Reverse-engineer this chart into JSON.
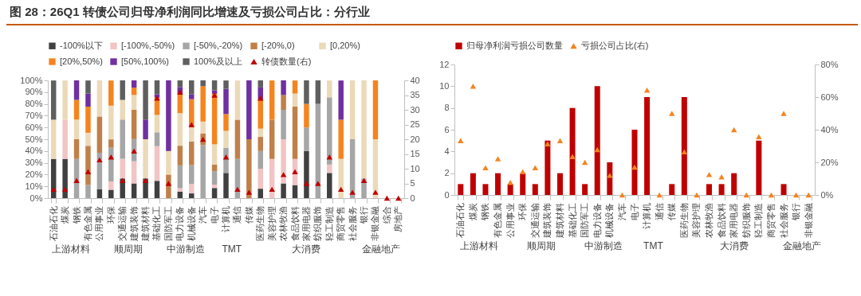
{
  "chart_data": [
    {
      "type": "bar",
      "title": "图 28：26Q1 转债公司归母净利润同比增速及亏损公司占比：分行业",
      "stacked": true,
      "legend": "top",
      "grid": false,
      "categories": [
        "石油石化",
        "煤炭",
        "钢铁",
        "有色金属",
        "公用事业",
        "环保",
        "交通运输",
        "建筑装饰",
        "建筑材料",
        "基础化工",
        "国防军工",
        "电力设备",
        "机械设备",
        "汽车",
        "电子",
        "计算机",
        "通信",
        "传媒",
        "医药生物",
        "美容护理",
        "农林牧渔",
        "食品饮料",
        "家用电器",
        "纺织服饰",
        "轻工制造",
        "商贸零售",
        "社会服务",
        "银行",
        "非银金融",
        "综合",
        "房地产"
      ],
      "ylim": [
        0,
        100
      ],
      "yticks": [
        {
          "value": 0,
          "label": "0%"
        },
        {
          "value": 10,
          "label": "10%"
        },
        {
          "value": 20,
          "label": "20%"
        },
        {
          "value": 30,
          "label": "30%"
        },
        {
          "value": 40,
          "label": "40%"
        },
        {
          "value": 50,
          "label": "50%"
        },
        {
          "value": 60,
          "label": "60%"
        },
        {
          "value": 70,
          "label": "70%"
        },
        {
          "value": 80,
          "label": "80%"
        },
        {
          "value": 90,
          "label": "90%"
        },
        {
          "value": 100,
          "label": "100%"
        }
      ],
      "y2lim": [
        0,
        40
      ],
      "y2ticks": [
        0,
        5,
        10,
        15,
        20,
        25,
        30,
        35,
        40
      ],
      "series": [
        {
          "name": "-100%以下",
          "color": "#404040",
          "values": [
            33.3,
            33.3,
            null,
            null,
            7.7,
            7.1,
            16.7,
            12.5,
            16.7,
            14.7,
            null,
            5.6,
            4,
            null,
            8.6,
            21.4,
            null,
            null,
            8,
            null,
            12.5,
            11.1,
            40,
            null,
            21.4,
            null,
            null,
            null,
            null,
            null,
            null
          ]
        },
        {
          "name": "[-100%,-50%)",
          "color": "#f2c4c4",
          "values": [
            null,
            33.3,
            null,
            null,
            null,
            7.1,
            16.7,
            18.8,
            null,
            29.4,
            null,
            2.8,
            8,
            null,
            2.9,
            null,
            null,
            null,
            17,
            33.3,
            37.5,
            22.2,
            null,
            null,
            7.1,
            null,
            null,
            null,
            null,
            null,
            null
          ]
        },
        {
          "name": "[-50%,-20%)",
          "color": "#a6a6a6",
          "values": [
            null,
            null,
            33.3,
            11.1,
            30.8,
            28.6,
            33.3,
            18.8,
            null,
            11.8,
            null,
            19.4,
            16,
            45,
            11.4,
            21.4,
            33.3,
            null,
            15,
            null,
            25,
            null,
            20,
            80,
            57.1,
            null,
            50,
            16.7,
            null,
            null,
            null
          ]
        },
        {
          "name": "[-20%,0)",
          "color": "#c0804a",
          "values": [
            null,
            null,
            16.7,
            33.3,
            30.8,
            7.1,
            null,
            25,
            null,
            null,
            20,
            16.7,
            20,
            10,
            5.7,
            null,
            33.3,
            50,
            12,
            33.3,
            12.5,
            44.4,
            null,
            null,
            null,
            null,
            null,
            null,
            null,
            null,
            null
          ]
        },
        {
          "name": "[0,20%)",
          "color": "#ebd9b8",
          "values": [
            33.3,
            33.3,
            16.7,
            11.1,
            30.7,
            28.6,
            16.7,
            12.5,
            33.3,
            14.7,
            20,
            27.7,
            12,
            10,
            17.1,
            14.3,
            33.3,
            null,
            7,
            null,
            null,
            11.1,
            null,
            null,
            14.3,
            33.3,
            50,
            83.3,
            50,
            null,
            null
          ]
        },
        {
          "name": "[20%,50%)",
          "color": "#f5841f",
          "values": [
            null,
            null,
            16.7,
            22.2,
            null,
            21.4,
            null,
            6.2,
            null,
            14.7,
            null,
            16.6,
            24,
            30,
            42.9,
            14.3,
            null,
            null,
            25,
            33.3,
            null,
            11.1,
            20,
            null,
            null,
            33.3,
            null,
            null,
            50,
            null,
            null
          ]
        },
        {
          "name": "[50%,100%)",
          "color": "#7030a0",
          "values": [
            null,
            null,
            16.6,
            11.1,
            null,
            null,
            null,
            6.2,
            16.7,
            2.9,
            60,
            5.6,
            4,
            null,
            2.9,
            21.4,
            null,
            50,
            10,
            null,
            12.5,
            null,
            null,
            null,
            null,
            33.3,
            null,
            null,
            null,
            null,
            null
          ]
        },
        {
          "name": "100%及以上",
          "color": "#5f5f5f",
          "values": [
            33.3,
            null,
            null,
            11.1,
            null,
            null,
            16.6,
            null,
            33.3,
            11.8,
            null,
            5.6,
            12,
            5,
            8.5,
            7.1,
            null,
            null,
            6,
            null,
            null,
            null,
            20,
            20,
            null,
            null,
            null,
            null,
            null,
            null,
            null
          ]
        },
        {
          "name": "转债数量(右)",
          "type": "scatter",
          "marker": "triangle",
          "axis": "y2",
          "color": "#c00000",
          "values": [
            3,
            3,
            6,
            9,
            13,
            14,
            6,
            16,
            6,
            34,
            5,
            36,
            25,
            20,
            35,
            14,
            3,
            2,
            34,
            3,
            8,
            9,
            5,
            5,
            14,
            3,
            2,
            6,
            2,
            0,
            0
          ]
        }
      ],
      "annotations": [
        "上游材料",
        "顺周期",
        "中游制造",
        "TMT",
        "大消费",
        "金融地产"
      ]
    },
    {
      "type": "bar",
      "legend": "top",
      "grid": false,
      "categories": [
        "石油石化",
        "煤炭",
        "钢铁",
        "有色金属",
        "公用事业",
        "环保",
        "交通运输",
        "建筑装饰",
        "建筑材料",
        "基础化工",
        "国防军工",
        "电力设备",
        "机械设备",
        "汽车",
        "电子",
        "计算机",
        "通信",
        "传媒",
        "医药生物",
        "美容护理",
        "农林牧渔",
        "食品饮料",
        "家用电器",
        "纺织服饰",
        "轻工制造",
        "商贸零售",
        "社会服务",
        "银行",
        "非银金融"
      ],
      "ylim": [
        0,
        12
      ],
      "yticks": [
        0,
        2,
        4,
        6,
        8,
        10,
        12
      ],
      "y2lim": [
        0,
        80
      ],
      "y2ticks": [
        {
          "value": 0,
          "label": "0%"
        },
        {
          "value": 20,
          "label": "20%"
        },
        {
          "value": 40,
          "label": "40%"
        },
        {
          "value": 60,
          "label": "60%"
        },
        {
          "value": 80,
          "label": "80%"
        }
      ],
      "series": [
        {
          "name": "归母净利润亏损公司数量",
          "color": "#c00000",
          "values": [
            1,
            2,
            1,
            2,
            1,
            2,
            1,
            5,
            2,
            8,
            1,
            10,
            3,
            0,
            6,
            9,
            0,
            1,
            9,
            0,
            1,
            1,
            2,
            0,
            5,
            0,
            1,
            0,
            0
          ]
        },
        {
          "name": "亏损公司占比(右)",
          "type": "scatter",
          "marker": "triangle",
          "axis": "y2",
          "color": "#f5841f",
          "values": [
            33.3,
            66.7,
            16.7,
            22.2,
            7.7,
            14.3,
            16.7,
            31.3,
            33.3,
            23.5,
            20,
            27.8,
            12,
            0,
            17.1,
            64.3,
            0,
            50,
            26.5,
            0,
            12.5,
            11.1,
            40,
            0,
            35.7,
            0,
            50,
            0,
            0
          ]
        }
      ],
      "annotations": [
        "上游材料",
        "顺周期",
        "中游制造",
        "TMT",
        "大消费",
        "金融地产"
      ]
    }
  ]
}
